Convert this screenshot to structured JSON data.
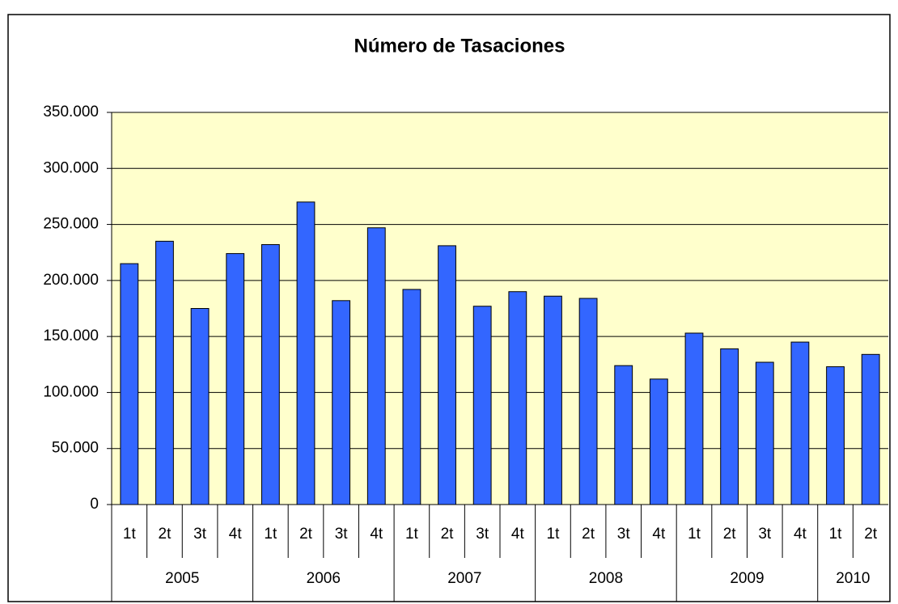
{
  "chart_data": {
    "type": "bar",
    "title": "Número de Tasaciones",
    "categories": [
      {
        "quarter": "1t",
        "year": "2005"
      },
      {
        "quarter": "2t",
        "year": "2005"
      },
      {
        "quarter": "3t",
        "year": "2005"
      },
      {
        "quarter": "4t",
        "year": "2005"
      },
      {
        "quarter": "1t",
        "year": "2006"
      },
      {
        "quarter": "2t",
        "year": "2006"
      },
      {
        "quarter": "3t",
        "year": "2006"
      },
      {
        "quarter": "4t",
        "year": "2006"
      },
      {
        "quarter": "1t",
        "year": "2007"
      },
      {
        "quarter": "2t",
        "year": "2007"
      },
      {
        "quarter": "3t",
        "year": "2007"
      },
      {
        "quarter": "4t",
        "year": "2007"
      },
      {
        "quarter": "1t",
        "year": "2008"
      },
      {
        "quarter": "2t",
        "year": "2008"
      },
      {
        "quarter": "3t",
        "year": "2008"
      },
      {
        "quarter": "4t",
        "year": "2008"
      },
      {
        "quarter": "1t",
        "year": "2009"
      },
      {
        "quarter": "2t",
        "year": "2009"
      },
      {
        "quarter": "3t",
        "year": "2009"
      },
      {
        "quarter": "4t",
        "year": "2009"
      },
      {
        "quarter": "1t",
        "year": "2010"
      },
      {
        "quarter": "2t",
        "year": "2010"
      }
    ],
    "values": [
      215000,
      235000,
      175000,
      224000,
      232000,
      270000,
      182000,
      247000,
      192000,
      231000,
      177000,
      190000,
      186000,
      184000,
      124000,
      112000,
      153000,
      139000,
      127000,
      145000,
      123000,
      134000
    ],
    "color": "#3366ff",
    "ylim": [
      0,
      350000
    ],
    "yticks": [
      0,
      {
        "value": 50000,
        "label": "50.000"
      },
      {
        "value": 100000,
        "label": "100.000"
      },
      {
        "value": 150000,
        "label": "150.000"
      },
      {
        "value": 200000,
        "label": "200.000"
      },
      {
        "value": 250000,
        "label": "250.000"
      },
      {
        "value": 300000,
        "label": "300.000"
      },
      {
        "value": 350000,
        "label": "350.000"
      }
    ],
    "grid": true
  }
}
